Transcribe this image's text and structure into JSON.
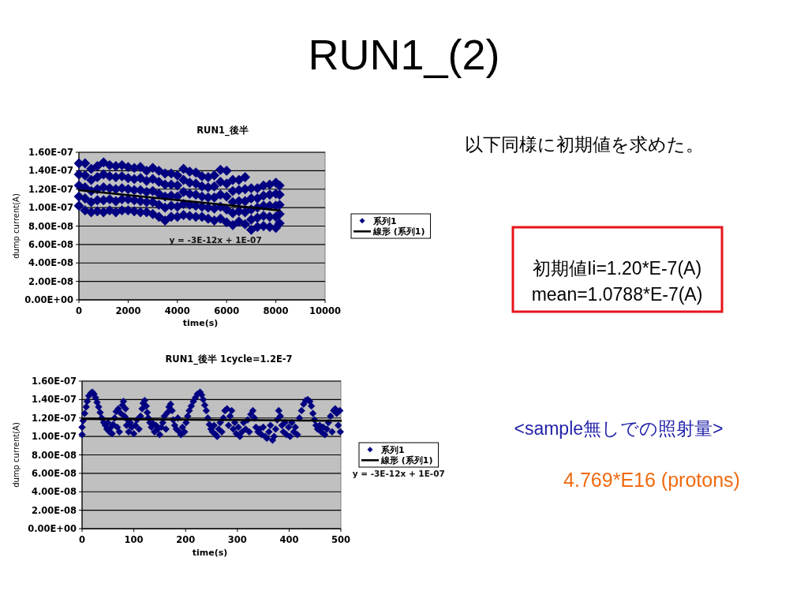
{
  "chart_data": [
    {
      "type": "other",
      "title": "RUN1_(2)",
      "annotations": [
        "以下同様に初期値を求めた。",
        "初期値Ii=1.20*E-7(A)",
        "mean=1.0788*E-7(A)",
        "<sample無しでの照射量>",
        "4.769*E16 (protons)"
      ]
    },
    {
      "type": "scatter",
      "title": "RUN1_後半",
      "xlabel": "time(s)",
      "ylabel": "dump current(A)",
      "xlim": [
        0,
        10000
      ],
      "xticks": [
        0,
        2000,
        4000,
        6000,
        8000,
        10000
      ],
      "ylim": [
        0,
        1.6e-07
      ],
      "yticks": [
        {
          "value": 0,
          "label": "0.00E+00"
        },
        {
          "value": 2e-08,
          "label": "2.00E-08"
        },
        {
          "value": 4e-08,
          "label": "4.00E-08"
        },
        {
          "value": 6e-08,
          "label": "6.00E-08"
        },
        {
          "value": 8e-08,
          "label": "8.00E-08"
        },
        {
          "value": 1e-07,
          "label": "1.00E-07"
        },
        {
          "value": 1.2e-07,
          "label": "1.20E-07"
        },
        {
          "value": 1.4e-07,
          "label": "1.40E-07"
        },
        {
          "value": 1.6e-07,
          "label": "1.60E-07"
        }
      ],
      "grid": "y",
      "legend": "right",
      "annotations": [
        "y = -3E-12x + 1E-07"
      ],
      "series": [
        {
          "name": "系列1",
          "color": "#000080",
          "marker": "diamond",
          "x": [
            0,
            0,
            0,
            0,
            0,
            250,
            250,
            250,
            250,
            250,
            500,
            500,
            500,
            500,
            500,
            750,
            750,
            750,
            750,
            750,
            1000,
            1000,
            1000,
            1000,
            1000,
            1250,
            1250,
            1250,
            1250,
            1250,
            1500,
            1500,
            1500,
            1500,
            1500,
            1750,
            1750,
            1750,
            1750,
            1750,
            2000,
            2000,
            2000,
            2000,
            2000,
            2250,
            2250,
            2250,
            2250,
            2250,
            2500,
            2500,
            2500,
            2500,
            2500,
            2750,
            2750,
            2750,
            2750,
            2750,
            3000,
            3000,
            3000,
            3000,
            3000,
            3250,
            3250,
            3250,
            3250,
            3250,
            3500,
            3500,
            3500,
            3500,
            3500,
            3750,
            3750,
            3750,
            3750,
            3750,
            4000,
            4000,
            4000,
            4000,
            4000,
            4250,
            4250,
            4250,
            4250,
            4250,
            4500,
            4500,
            4500,
            4500,
            4500,
            4750,
            4750,
            4750,
            4750,
            4750,
            5000,
            5000,
            5000,
            5000,
            5000,
            5250,
            5250,
            5250,
            5250,
            5250,
            5500,
            5500,
            5500,
            5500,
            5500,
            5750,
            5750,
            5750,
            5750,
            5750,
            6000,
            6000,
            6000,
            6000,
            6000,
            6250,
            6250,
            6250,
            6250,
            6250,
            6500,
            6500,
            6500,
            6500,
            6500,
            6750,
            6750,
            6750,
            6750,
            6750,
            7000,
            7000,
            7000,
            7000,
            7000,
            7250,
            7250,
            7250,
            7250,
            7250,
            7500,
            7500,
            7500,
            7500,
            7500,
            7750,
            7750,
            7750,
            7750,
            7750,
            8000,
            8000,
            8000,
            8000,
            8000,
            8150,
            8150,
            8150,
            8150,
            8150
          ],
          "values": [
            1.02e-07,
            1.12e-07,
            1.24e-07,
            1.36e-07,
            1.48e-07,
            9.7e-08,
            1.1e-07,
            1.22e-07,
            1.35e-07,
            1.48e-07,
            9.5e-08,
            1.06e-07,
            1.18e-07,
            1.3e-07,
            1.42e-07,
            9.6e-08,
            1.08e-07,
            1.2e-07,
            1.33e-07,
            1.45e-07,
            9.5e-08,
            1.08e-07,
            1.22e-07,
            1.36e-07,
            1.49e-07,
            9.7e-08,
            1.09e-07,
            1.21e-07,
            1.34e-07,
            1.46e-07,
            9.5e-08,
            1.07e-07,
            1.2e-07,
            1.33e-07,
            1.45e-07,
            9.7e-08,
            1.09e-07,
            1.21e-07,
            1.34e-07,
            1.46e-07,
            9.7e-08,
            1.09e-07,
            1.2e-07,
            1.32e-07,
            1.44e-07,
            9.6e-08,
            1.08e-07,
            1.19e-07,
            1.31e-07,
            1.43e-07,
            9.5e-08,
            1.07e-07,
            1.19e-07,
            1.32e-07,
            1.44e-07,
            9.5e-08,
            1.06e-07,
            1.17e-07,
            1.29e-07,
            1.4e-07,
            9.3e-08,
            1.06e-07,
            1.18e-07,
            1.31e-07,
            1.43e-07,
            9e-08,
            1.03e-07,
            1.15e-07,
            1.28e-07,
            1.4e-07,
            8.6e-08,
            1e-07,
            1.12e-07,
            1.25e-07,
            1.37e-07,
            9e-08,
            1.02e-07,
            1.13e-07,
            1.25e-07,
            1.37e-07,
            9e-08,
            1.01e-07,
            1.12e-07,
            1.24e-07,
            1.35e-07,
            9.2e-08,
            1.04e-07,
            1.17e-07,
            1.3e-07,
            1.42e-07,
            9.1e-08,
            1.03e-07,
            1.15e-07,
            1.27e-07,
            1.39e-07,
            9e-08,
            1.02e-07,
            1.14e-07,
            1.26e-07,
            1.38e-07,
            9e-08,
            1.01e-07,
            1.12e-07,
            1.23e-07,
            1.34e-07,
            8.8e-08,
            1e-07,
            1.11e-07,
            1.22e-07,
            1.33e-07,
            8.6e-08,
            9.9e-08,
            1.11e-07,
            1.23e-07,
            1.35e-07,
            8.8e-08,
            1.01e-07,
            1.14e-07,
            1.28e-07,
            1.41e-07,
            8.4e-08,
            9.8e-08,
            1.12e-07,
            1.26e-07,
            1.4e-07,
            8.1e-08,
            9.4e-08,
            1.06e-07,
            1.18e-07,
            1.3e-07,
            8.5e-08,
            9.6e-08,
            1.07e-07,
            1.19e-07,
            1.3e-07,
            8.2e-08,
            9.5e-08,
            1.07e-07,
            1.2e-07,
            1.33e-07,
            7.6e-08,
            8.7e-08,
            9.8e-08,
            1.1e-07,
            1.21e-07,
            7.9e-08,
            8.9e-08,
            1e-07,
            1.1e-07,
            1.21e-07,
            8e-08,
            9.1e-08,
            1.02e-07,
            1.13e-07,
            1.24e-07,
            7.9e-08,
            9e-08,
            1.02e-07,
            1.14e-07,
            1.25e-07,
            7.8e-08,
            9e-08,
            1.02e-07,
            1.15e-07,
            1.27e-07,
            8.3e-08,
            9.3e-08,
            1.03e-07,
            1.14e-07,
            1.24e-07
          ]
        },
        {
          "name": "線形 (系列1)",
          "type": "line",
          "color": "#000000",
          "x": [
            0,
            8150
          ],
          "values": [
            1.19e-07,
            9.7e-08
          ]
        }
      ]
    },
    {
      "type": "scatter",
      "title": "RUN1_後半 1cycle=1.2E-7",
      "xlabel": "time(s)",
      "ylabel": "dump current(A)",
      "xlim": [
        0,
        500
      ],
      "xticks": [
        0,
        100,
        200,
        300,
        400,
        500
      ],
      "ylim": [
        0,
        1.6e-07
      ],
      "yticks": [
        {
          "value": 0,
          "label": "0.00E+00"
        },
        {
          "value": 2e-08,
          "label": "2.00E-08"
        },
        {
          "value": 4e-08,
          "label": "4.00E-08"
        },
        {
          "value": 6e-08,
          "label": "6.00E-08"
        },
        {
          "value": 8e-08,
          "label": "8.00E-08"
        },
        {
          "value": 1e-07,
          "label": "1.00E-07"
        },
        {
          "value": 1.2e-07,
          "label": "1.20E-07"
        },
        {
          "value": 1.4e-07,
          "label": "1.40E-07"
        },
        {
          "value": 1.6e-07,
          "label": "1.60E-07"
        }
      ],
      "grid": "y",
      "legend": "right",
      "annotations": [
        "y = -3E-12x + 1E-07"
      ],
      "series": [
        {
          "name": "系列1",
          "color": "#000080",
          "marker": "diamond",
          "x": [
            0,
            0,
            2,
            5,
            8,
            10,
            13,
            17,
            20,
            23,
            26,
            29,
            32,
            35,
            38,
            42,
            45,
            48,
            50,
            53,
            56,
            58,
            60,
            63,
            66,
            68,
            70,
            72,
            75,
            78,
            80,
            82,
            84,
            86,
            88,
            90,
            93,
            96,
            100,
            103,
            106,
            110,
            113,
            116,
            118,
            121,
            124,
            126,
            128,
            131,
            134,
            137,
            140,
            143,
            146,
            150,
            153,
            156,
            159,
            162,
            165,
            168,
            171,
            174,
            176,
            179,
            182,
            185,
            188,
            191,
            194,
            198,
            201,
            204,
            207,
            211,
            215,
            219,
            223,
            228,
            231,
            234,
            237,
            240,
            243,
            246,
            249,
            252,
            255,
            258,
            261,
            264,
            267,
            270,
            273,
            276,
            280,
            283,
            286,
            289,
            292,
            295,
            298,
            302,
            305,
            309,
            312,
            316,
            320,
            323,
            326,
            330,
            333,
            336,
            340,
            343,
            347,
            350,
            354,
            357,
            361,
            364,
            368,
            371,
            374,
            377,
            380,
            383,
            386,
            389,
            392,
            395,
            399,
            402,
            405,
            409,
            412,
            416,
            420,
            424,
            428,
            432,
            436,
            440,
            443,
            446,
            449,
            452,
            455,
            459,
            462,
            466,
            469,
            473,
            476,
            480,
            483,
            486,
            489,
            492,
            495,
            498,
            499
          ],
          "values": [
            1.02e-07,
            1.1e-07,
            1.17e-07,
            1.25e-07,
            1.32e-07,
            1.38e-07,
            1.44e-07,
            1.47e-07,
            1.48e-07,
            1.46e-07,
            1.42e-07,
            1.37e-07,
            1.32e-07,
            1.26e-07,
            1.2e-07,
            1.15e-07,
            1.12e-07,
            1.08e-07,
            1.15e-07,
            1.05e-07,
            1.1e-07,
            1.03e-07,
            1.13e-07,
            1.2e-07,
            1.27e-07,
            1.1e-07,
            1.3e-07,
            1.05e-07,
            1.25e-07,
            1.34e-07,
            1.38e-07,
            1.22e-07,
            1.3e-07,
            1.12e-07,
            1.18e-07,
            1.05e-07,
            1.15e-07,
            1.1e-07,
            1.03e-07,
            1.12e-07,
            1.18e-07,
            1.08e-07,
            1.22e-07,
            1.3e-07,
            1.36e-07,
            1.39e-07,
            1.33e-07,
            1.26e-07,
            1.2e-07,
            1.15e-07,
            1.1e-07,
            1.14e-07,
            1.05e-07,
            1.12e-07,
            1.08e-07,
            1.02e-07,
            1.1e-07,
            1.15e-07,
            1.22e-07,
            1.08e-07,
            1.26e-07,
            1.32e-07,
            1.35e-07,
            1.28e-07,
            1.18e-07,
            1.12e-07,
            1.08e-07,
            1.2e-07,
            1.05e-07,
            1.02e-07,
            1.1e-07,
            1.05e-07,
            1.15e-07,
            1.22e-07,
            1.28e-07,
            1.33e-07,
            1.38e-07,
            1.42e-07,
            1.46e-07,
            1.48e-07,
            1.45e-07,
            1.4e-07,
            1.34e-07,
            1.28e-07,
            1.2e-07,
            1.13e-07,
            1.08e-07,
            1.05e-07,
            1.12e-07,
            1.02e-07,
            1e-07,
            1.08e-07,
            1.15e-07,
            1.05e-07,
            1.2e-07,
            1.28e-07,
            1.3e-07,
            1.12e-07,
            1.22e-07,
            1.28e-07,
            1.08e-07,
            1.15e-07,
            1.03e-07,
            1.1e-07,
            1e-07,
            1.05e-07,
            1.15e-07,
            1.08e-07,
            1.18e-07,
            1.05e-07,
            1.24e-07,
            1.28e-07,
            1.2e-07,
            1.1e-07,
            1.05e-07,
            1.08e-07,
            1.02e-07,
            1.1e-07,
            1e-07,
            9.8e-08,
            1.05e-07,
            1.12e-07,
            9.6e-08,
            1e-07,
            1.08e-07,
            1.18e-07,
            1.28e-07,
            1.22e-07,
            1.12e-07,
            1.05e-07,
            1.15e-07,
            1.02e-07,
            1.1e-07,
            1e-07,
            1.15e-07,
            1.05e-07,
            1.1e-07,
            1.02e-07,
            1.2e-07,
            1.28e-07,
            1.35e-07,
            1.39e-07,
            1.4e-07,
            1.38e-07,
            1.33e-07,
            1.25e-07,
            1.18e-07,
            1.12e-07,
            1.08e-07,
            1.12e-07,
            1.05e-07,
            1.1e-07,
            1.02e-07,
            1.08e-07,
            1.15e-07,
            1.22e-07,
            1.05e-07,
            1.28e-07,
            1.3e-07,
            1.25e-07,
            1.12e-07,
            1.28e-07,
            1.05e-07
          ]
        },
        {
          "name": "線形 (系列1)",
          "type": "line",
          "color": "#000000",
          "x": [
            0,
            500
          ],
          "values": [
            1.19e-07,
            1.17e-07
          ]
        }
      ]
    }
  ]
}
